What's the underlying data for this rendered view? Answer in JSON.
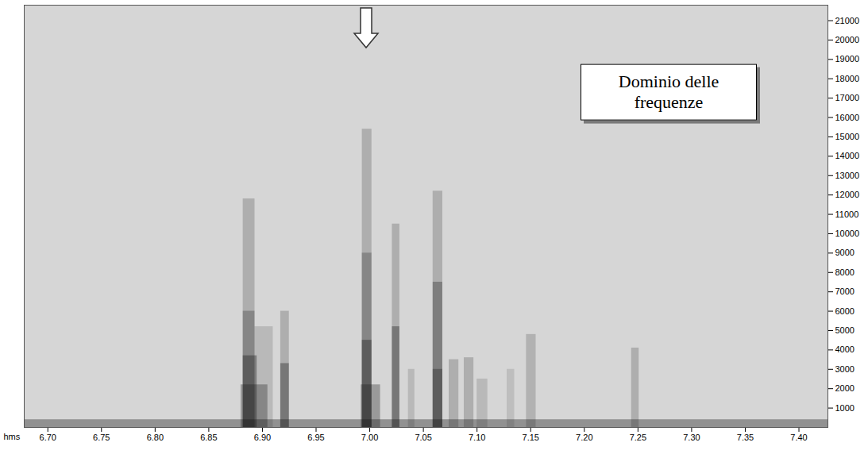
{
  "chart_data": {
    "type": "spectrogram",
    "x_label": "hms",
    "xlim": [
      6.678,
      7.427
    ],
    "xticks": [
      {
        "value": 6.7,
        "label": "6.70"
      },
      {
        "value": 6.75,
        "label": "6.75"
      },
      {
        "value": 6.8,
        "label": "6.80"
      },
      {
        "value": 6.85,
        "label": "6.85"
      },
      {
        "value": 6.9,
        "label": "6.90"
      },
      {
        "value": 6.95,
        "label": "6.95"
      },
      {
        "value": 7.0,
        "label": "7.00"
      },
      {
        "value": 7.05,
        "label": "7.05"
      },
      {
        "value": 7.1,
        "label": "7.10"
      },
      {
        "value": 7.15,
        "label": "7.15"
      },
      {
        "value": 7.2,
        "label": "7.20"
      },
      {
        "value": 7.25,
        "label": "7.25"
      },
      {
        "value": 7.3,
        "label": "7.30"
      },
      {
        "value": 7.35,
        "label": "7.35"
      },
      {
        "value": 7.4,
        "label": "7.40"
      }
    ],
    "ylim": [
      0,
      21800
    ],
    "yticks": [
      1000,
      2000,
      3000,
      4000,
      5000,
      6000,
      7000,
      8000,
      9000,
      10000,
      11000,
      12000,
      13000,
      14000,
      15000,
      16000,
      17000,
      18000,
      19000,
      20000,
      21000
    ],
    "color": "#111111",
    "cells": [
      {
        "t0": 6.678,
        "t1": 7.427,
        "f0": 0,
        "f1": 400,
        "level": 0.35
      },
      {
        "t0": 6.882,
        "t1": 6.893,
        "f0": 0,
        "f1": 11800,
        "level": 0.2
      },
      {
        "t0": 6.882,
        "t1": 6.893,
        "f0": 0,
        "f1": 6000,
        "level": 0.25
      },
      {
        "t0": 6.882,
        "t1": 6.895,
        "f0": 0,
        "f1": 3700,
        "level": 0.35
      },
      {
        "t0": 6.88,
        "t1": 6.905,
        "f0": 0,
        "f1": 2200,
        "level": 0.3
      },
      {
        "t0": 6.893,
        "t1": 6.91,
        "f0": 0,
        "f1": 5200,
        "level": 0.15
      },
      {
        "t0": 6.917,
        "t1": 6.925,
        "f0": 0,
        "f1": 6000,
        "level": 0.2
      },
      {
        "t0": 6.917,
        "t1": 6.925,
        "f0": 0,
        "f1": 3300,
        "level": 0.35
      },
      {
        "t0": 6.993,
        "t1": 7.002,
        "f0": 0,
        "f1": 15400,
        "level": 0.2
      },
      {
        "t0": 6.993,
        "t1": 7.002,
        "f0": 0,
        "f1": 9000,
        "level": 0.25
      },
      {
        "t0": 6.993,
        "t1": 7.002,
        "f0": 0,
        "f1": 4500,
        "level": 0.35
      },
      {
        "t0": 6.992,
        "t1": 7.01,
        "f0": 0,
        "f1": 2200,
        "level": 0.3
      },
      {
        "t0": 7.021,
        "t1": 7.028,
        "f0": 0,
        "f1": 10500,
        "level": 0.2
      },
      {
        "t0": 7.021,
        "t1": 7.028,
        "f0": 0,
        "f1": 5200,
        "level": 0.35
      },
      {
        "t0": 7.036,
        "t1": 7.042,
        "f0": 0,
        "f1": 3000,
        "level": 0.15
      },
      {
        "t0": 7.059,
        "t1": 7.068,
        "f0": 0,
        "f1": 12200,
        "level": 0.2
      },
      {
        "t0": 7.059,
        "t1": 7.068,
        "f0": 0,
        "f1": 7500,
        "level": 0.3
      },
      {
        "t0": 7.059,
        "t1": 7.068,
        "f0": 0,
        "f1": 3000,
        "level": 0.3
      },
      {
        "t0": 7.074,
        "t1": 7.083,
        "f0": 0,
        "f1": 3500,
        "level": 0.2
      },
      {
        "t0": 7.088,
        "t1": 7.097,
        "f0": 0,
        "f1": 3600,
        "level": 0.2
      },
      {
        "t0": 7.1,
        "t1": 7.11,
        "f0": 0,
        "f1": 2500,
        "level": 0.15
      },
      {
        "t0": 7.128,
        "t1": 7.135,
        "f0": 0,
        "f1": 3000,
        "level": 0.12
      },
      {
        "t0": 7.146,
        "t1": 7.155,
        "f0": 0,
        "f1": 4800,
        "level": 0.18
      },
      {
        "t0": 7.244,
        "t1": 7.251,
        "f0": 0,
        "f1": 4100,
        "level": 0.2
      }
    ],
    "annotations": [
      {
        "text": "Dominio delle frequenze",
        "x": 7.279,
        "y": 17300
      }
    ],
    "arrow": {
      "x": 6.997
    }
  }
}
